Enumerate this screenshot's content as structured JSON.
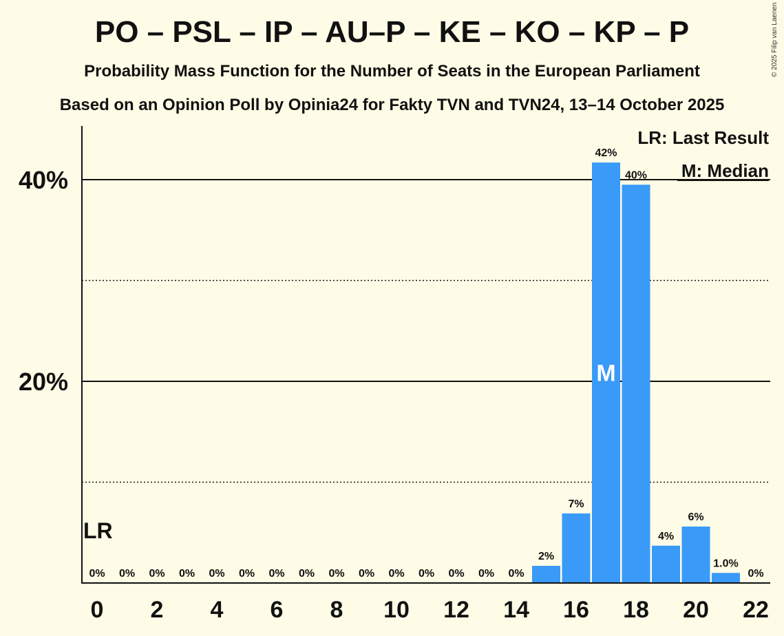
{
  "header": {
    "title": "PO – PSL – IP – AU–P – KE – KO – KP – P",
    "subtitle": "Probability Mass Function for the Number of Seats in the European Parliament",
    "source": "Based on an Opinion Poll by Opinia24 for Fakty TVN and TVN24, 13–14 October 2025",
    "copyright": "© 2025 Filip van Laenen"
  },
  "legend": {
    "last_result": "LR: Last Result",
    "median": "M: Median"
  },
  "chart_data": {
    "type": "bar",
    "x": [
      0,
      1,
      2,
      3,
      4,
      5,
      6,
      7,
      8,
      9,
      10,
      11,
      12,
      13,
      14,
      15,
      16,
      17,
      18,
      19,
      20,
      21,
      22
    ],
    "values": [
      0,
      0,
      0,
      0,
      0,
      0,
      0,
      0,
      0,
      0,
      0,
      0,
      0,
      0,
      0,
      1.7,
      6.9,
      41.7,
      39.5,
      3.7,
      5.6,
      1.0,
      0
    ],
    "data_labels": [
      "0%",
      "0%",
      "0%",
      "0%",
      "0%",
      "0%",
      "0%",
      "0%",
      "0%",
      "0%",
      "0%",
      "0%",
      "0%",
      "0%",
      "0%",
      "2%",
      "7%",
      "42%",
      "40%",
      "4%",
      "6%",
      "1.0%",
      "0%"
    ],
    "x_tick_labels": [
      "0",
      "2",
      "4",
      "6",
      "8",
      "10",
      "12",
      "14",
      "16",
      "18",
      "20",
      "22"
    ],
    "y_tick_labels": [
      "20%",
      "40%"
    ],
    "ylim": [
      0,
      45
    ],
    "major_gridlines": [
      20,
      40
    ],
    "minor_gridlines": [
      10,
      30
    ],
    "last_result_seat": 0,
    "last_result_marker": "LR",
    "median_seat": 17,
    "median_marker": "M",
    "bar_color": "#3a9af8",
    "background_color": "#fefce6",
    "xlabel": "",
    "ylabel": ""
  }
}
